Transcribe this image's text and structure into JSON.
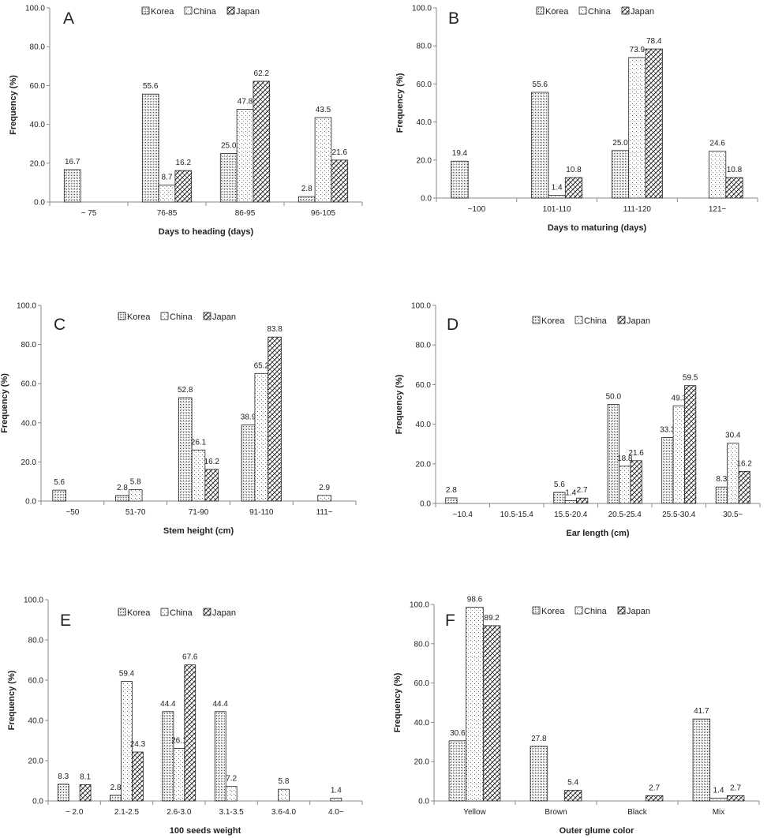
{
  "series_names": [
    "Korea",
    "China",
    "Japan"
  ],
  "chart_data": [
    {
      "type": "bar",
      "panel_label": "A",
      "categories": [
        "~ 75",
        "76-85",
        "86-95",
        "96-105"
      ],
      "series": [
        {
          "name": "Korea",
          "values": [
            16.7,
            55.6,
            25.0,
            2.8
          ],
          "labels": [
            "16.7",
            "55.6",
            "25.0",
            "2.8"
          ]
        },
        {
          "name": "China",
          "values": [
            0,
            8.7,
            47.8,
            43.5
          ],
          "labels": [
            "",
            "8.7",
            "47.8",
            "43.5"
          ]
        },
        {
          "name": "Japan",
          "values": [
            0,
            16.2,
            62.2,
            21.6
          ],
          "labels": [
            "",
            "16.2",
            "62.2",
            "21.6"
          ]
        }
      ],
      "xlabel": "Days  to heading  (days)",
      "ylabel": "Frequency (%)",
      "ylim": [
        0,
        100
      ],
      "yticks": [
        "0.0",
        "20.0",
        "40.0",
        "60.0",
        "80.0",
        "100.0"
      ],
      "legend": "top"
    },
    {
      "type": "bar",
      "panel_label": "B",
      "categories": [
        "~100",
        "101-110",
        "111-120",
        "121~"
      ],
      "series": [
        {
          "name": "Korea",
          "values": [
            19.4,
            55.6,
            25.0,
            0
          ],
          "labels": [
            "19.4",
            "55.6",
            "25.0",
            ""
          ]
        },
        {
          "name": "China",
          "values": [
            0,
            1.4,
            73.9,
            24.6
          ],
          "labels": [
            "",
            "1.4",
            "73.9",
            "24.6"
          ]
        },
        {
          "name": "Japan",
          "values": [
            0,
            10.8,
            78.4,
            10.8
          ],
          "labels": [
            "",
            "10.8",
            "78.4",
            "10.8"
          ]
        }
      ],
      "xlabel": "Days to maturing (days)",
      "ylabel": "Frequency (%)",
      "ylim": [
        0,
        100
      ],
      "yticks": [
        "0.0",
        "20.0",
        "40.0",
        "60.0",
        "80.0",
        "100.0"
      ],
      "legend": "top"
    },
    {
      "type": "bar",
      "panel_label": "C",
      "categories": [
        "~50",
        "51-70",
        "71-90",
        "91-110",
        "111~"
      ],
      "series": [
        {
          "name": "Korea",
          "values": [
            5.6,
            2.8,
            52.8,
            38.9,
            0
          ],
          "labels": [
            "5.6",
            "2.8",
            "52.8",
            "38.9",
            ""
          ]
        },
        {
          "name": "China",
          "values": [
            0,
            5.8,
            26.1,
            65.2,
            2.9
          ],
          "labels": [
            "",
            "5.8",
            "26.1",
            "65.2",
            "2.9"
          ]
        },
        {
          "name": "Japan",
          "values": [
            0,
            0,
            16.2,
            83.8,
            0
          ],
          "labels": [
            "",
            "",
            "16.2",
            "83.8",
            ""
          ]
        }
      ],
      "xlabel": "Stem height (cm)",
      "ylabel": "Frequency (%)",
      "ylim": [
        0,
        100
      ],
      "yticks": [
        "0.0",
        "20.0",
        "40.0",
        "60.0",
        "80.0",
        "100.0"
      ],
      "legend": "top"
    },
    {
      "type": "bar",
      "panel_label": "D",
      "categories": [
        "~10.4",
        "10.5-15.4",
        "15.5-20.4",
        "20.5-25.4",
        "25.5-30.4",
        "30.5~"
      ],
      "series": [
        {
          "name": "Korea",
          "values": [
            2.8,
            0,
            5.6,
            50.0,
            33.3,
            8.3
          ],
          "labels": [
            "2.8",
            "",
            "5.6",
            "50.0",
            "33.3",
            "8.3"
          ]
        },
        {
          "name": "China",
          "values": [
            0,
            0,
            1.4,
            18.8,
            49.3,
            30.4
          ],
          "labels": [
            "",
            "",
            "1.4",
            "18.8",
            "49.3",
            "30.4"
          ]
        },
        {
          "name": "Japan",
          "values": [
            0,
            0,
            2.7,
            21.6,
            59.5,
            16.2
          ],
          "labels": [
            "",
            "",
            "2.7",
            "21.6",
            "59.5",
            "16.2"
          ]
        }
      ],
      "xlabel": "Ear length (cm)",
      "ylabel": "Frequency (%)",
      "ylim": [
        0,
        100
      ],
      "yticks": [
        "0.0",
        "20.0",
        "40.0",
        "60.0",
        "80.0",
        "100.0"
      ],
      "legend": "top"
    },
    {
      "type": "bar",
      "panel_label": "E",
      "categories": [
        "~ 2.0",
        "2.1-2.5",
        "2.6-3.0",
        "3.1-3.5",
        "3.6-4.0",
        "4.0~"
      ],
      "series": [
        {
          "name": "Korea",
          "values": [
            8.3,
            2.8,
            44.4,
            44.4,
            0,
            0
          ],
          "labels": [
            "8.3",
            "2.8",
            "44.4",
            "44.4",
            "",
            ""
          ]
        },
        {
          "name": "China",
          "values": [
            0,
            59.4,
            26.1,
            7.2,
            5.8,
            1.4
          ],
          "labels": [
            "",
            "59.4",
            "26.1",
            "7.2",
            "5.8",
            "1.4"
          ]
        },
        {
          "name": "Japan",
          "values": [
            8.1,
            24.3,
            67.6,
            0,
            0,
            0
          ],
          "labels": [
            "8.1",
            "24.3",
            "67.6",
            "",
            "",
            ""
          ]
        }
      ],
      "xlabel": "100 seeds weight",
      "ylabel": "Frequency (%)",
      "ylim": [
        0,
        100
      ],
      "yticks": [
        "0.0",
        "20.0",
        "40.0",
        "60.0",
        "80.0",
        "100.0"
      ],
      "legend": "top"
    },
    {
      "type": "bar",
      "panel_label": "F",
      "categories": [
        "Yellow",
        "Brown",
        "Black",
        "Mix"
      ],
      "series": [
        {
          "name": "Korea",
          "values": [
            30.6,
            27.8,
            0,
            41.7
          ],
          "labels": [
            "30.6",
            "27.8",
            "",
            "41.7"
          ]
        },
        {
          "name": "China",
          "values": [
            98.6,
            0,
            0,
            1.4
          ],
          "labels": [
            "98.6",
            "",
            "",
            "1.4"
          ]
        },
        {
          "name": "Japan",
          "values": [
            89.2,
            5.4,
            2.7,
            2.7
          ],
          "labels": [
            "89.2",
            "5.4",
            "2.7",
            "2.7"
          ]
        }
      ],
      "xlabel": "Outer glume color",
      "ylabel": "Frequency (%)",
      "ylim": [
        0,
        100
      ],
      "yticks": [
        "0.0",
        "20.0",
        "40.0",
        "60.0",
        "80.0",
        "100.0"
      ],
      "legend": "top"
    }
  ]
}
